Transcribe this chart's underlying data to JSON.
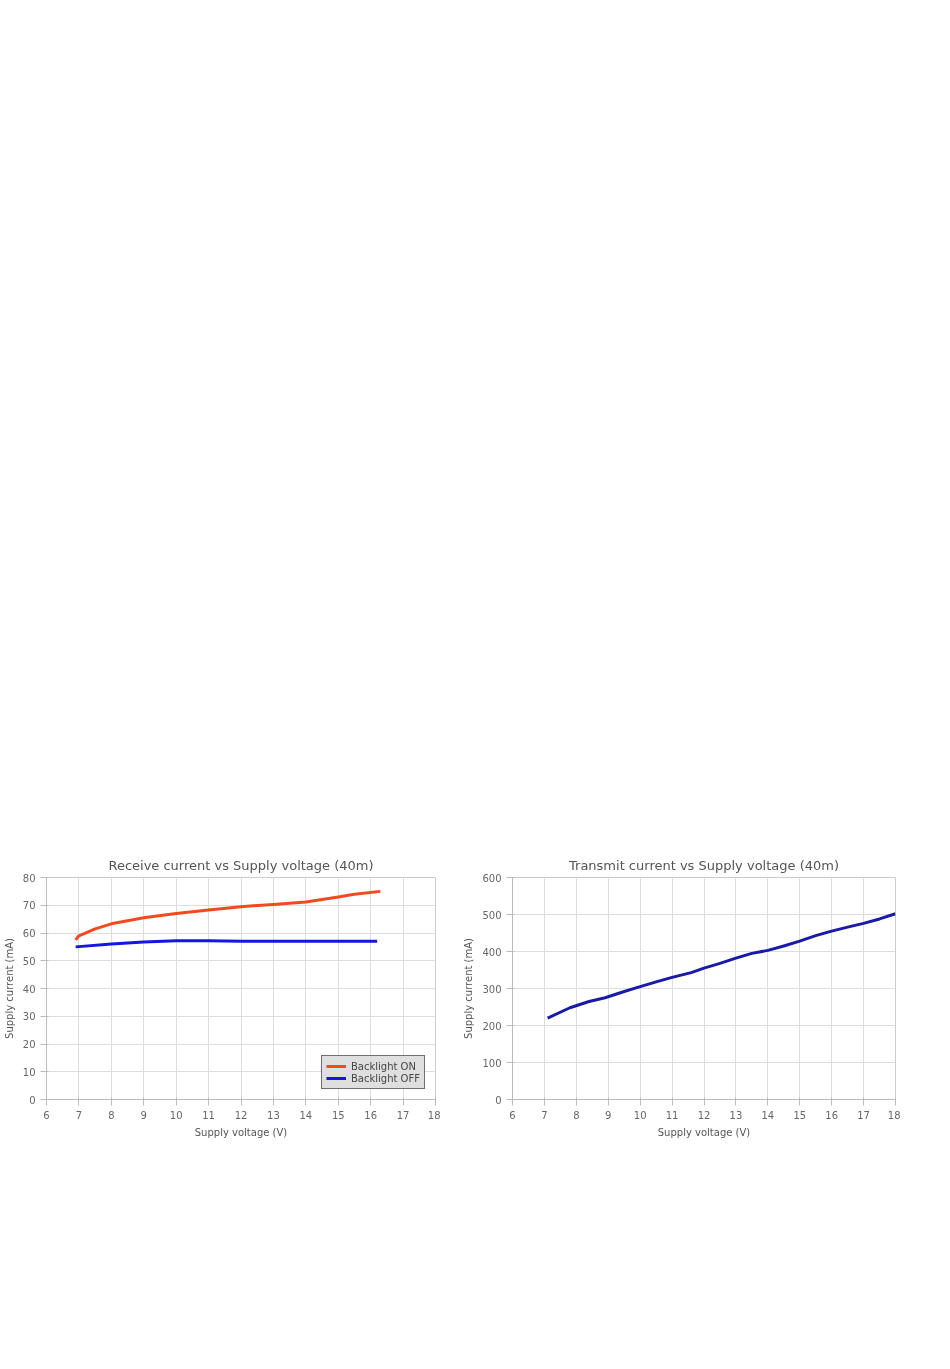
{
  "chart_data": [
    {
      "type": "line",
      "title": "Receive current vs Supply voltage (40m)",
      "xlabel": "Supply voltage (V)",
      "ylabel": "Supply current (mA)",
      "xlim": [
        6,
        18
      ],
      "xticks": [
        6,
        7,
        8,
        9,
        10,
        11,
        12,
        13,
        14,
        15,
        16,
        17,
        18
      ],
      "ylim": [
        0,
        80
      ],
      "yticks": [
        0,
        10,
        20,
        30,
        40,
        50,
        60,
        70,
        80
      ],
      "grid": true,
      "legend": "bottom right",
      "series": [
        {
          "name": "Backlight ON",
          "color": "#f24a1e",
          "x": [
            6.9,
            7.0,
            7.5,
            8,
            9,
            10,
            11,
            12,
            13,
            14,
            15,
            15.5,
            16.3
          ],
          "values": [
            57.5,
            59,
            61.5,
            63.3,
            65.5,
            67,
            68.3,
            69.5,
            70.3,
            71.2,
            73,
            74,
            75
          ]
        },
        {
          "name": "Backlight OFF",
          "color": "#1414e6",
          "x": [
            6.9,
            8,
            9,
            10,
            11,
            12,
            13,
            14,
            15,
            16.2
          ],
          "values": [
            55,
            56,
            56.8,
            57.2,
            57.2,
            57,
            57,
            57,
            57,
            57
          ]
        }
      ]
    },
    {
      "type": "line",
      "title": "Transmit current vs Supply voltage (40m)",
      "xlabel": "Supply voltage (V)",
      "ylabel": "Supply current (mA)",
      "xlim": [
        6,
        18
      ],
      "xticks": [
        6,
        7,
        8,
        9,
        10,
        11,
        12,
        13,
        14,
        15,
        16,
        17,
        18
      ],
      "ylim": [
        0,
        600
      ],
      "yticks": [
        0,
        100,
        200,
        300,
        400,
        500,
        600
      ],
      "grid": true,
      "series": [
        {
          "color": "#1a1aa8",
          "x": [
            7.1,
            7.8,
            8.4,
            8.9,
            9.5,
            10,
            10.5,
            11,
            11.6,
            12,
            12.5,
            13,
            13.5,
            14,
            14.5,
            15,
            15.5,
            16,
            16.5,
            17,
            17.5,
            18
          ],
          "values": [
            220,
            248,
            265,
            275,
            292,
            305,
            318,
            330,
            343,
            355,
            368,
            382,
            395,
            403,
            415,
            428,
            443,
            455,
            466,
            476,
            488,
            502
          ]
        }
      ]
    }
  ]
}
